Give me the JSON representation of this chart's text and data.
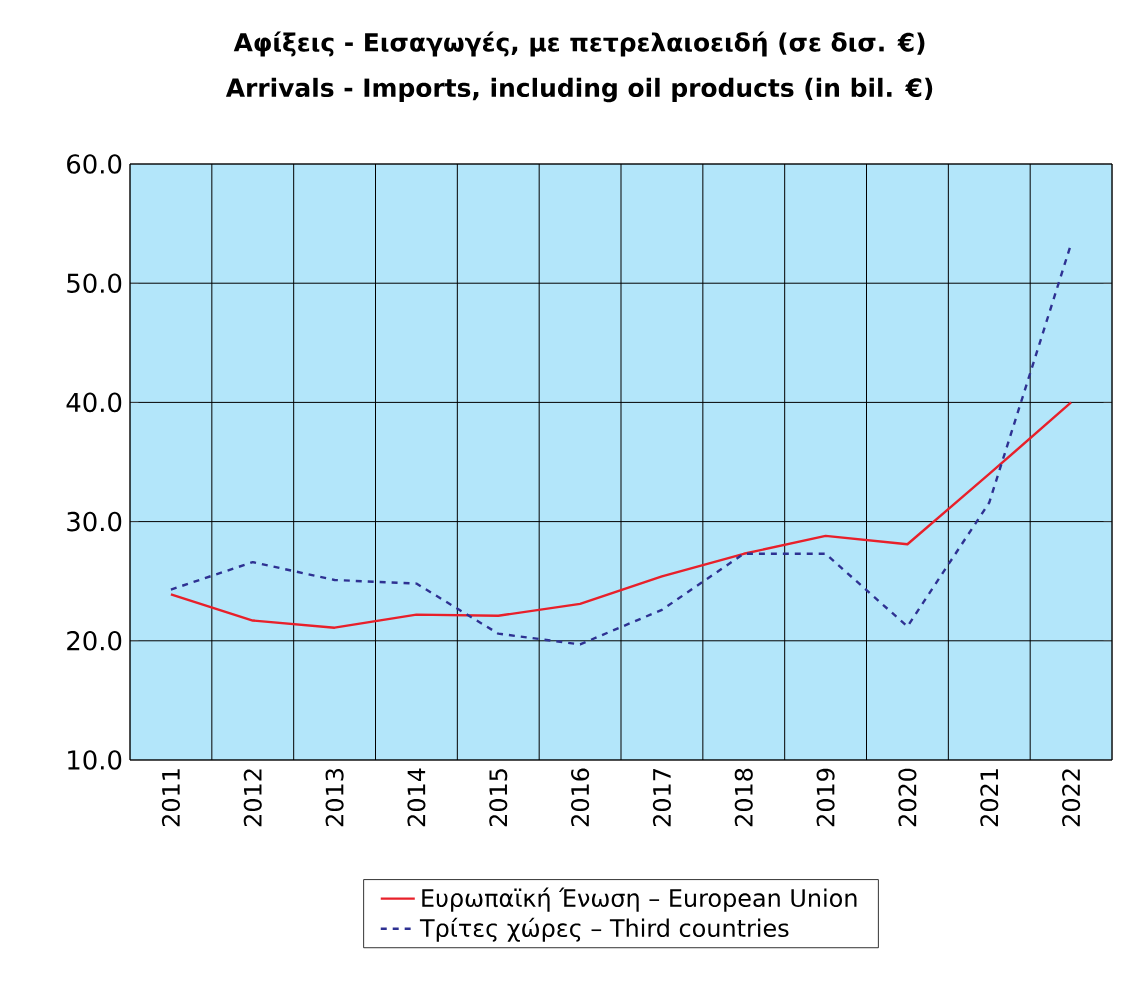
{
  "chart_data": {
    "type": "line",
    "title": "Αφίξεις - Εισαγωγές, με πετρελαιοειδή (σε δισ. €)",
    "subtitle": "Arrivals - Imports, including oil products (in bil. €)",
    "categories": [
      "2011",
      "2012",
      "2013",
      "2014",
      "2015",
      "2016",
      "2017",
      "2018",
      "2019",
      "2020",
      "2021",
      "2022"
    ],
    "series": [
      {
        "name": "Ευρωπαϊκή Ένωση – European Union",
        "color": "#e8202a",
        "line_style": "solid",
        "values": [
          23.9,
          21.7,
          21.1,
          22.2,
          22.1,
          23.1,
          25.4,
          27.3,
          28.8,
          28.1,
          34.0,
          40.0
        ]
      },
      {
        "name": "Τρίτες χώρες – Third countries",
        "color": "#2e3192",
        "line_style": "dashed",
        "values": [
          24.3,
          26.6,
          25.1,
          24.8,
          20.6,
          19.7,
          22.6,
          27.3,
          27.3,
          21.2,
          31.6,
          53.3
        ]
      }
    ],
    "ylim": [
      10,
      60
    ],
    "yticks": [
      {
        "value": 10,
        "label": "10.0"
      },
      {
        "value": 20,
        "label": "20.0"
      },
      {
        "value": 30,
        "label": "30.0"
      },
      {
        "value": 40,
        "label": "40.0"
      },
      {
        "value": 50,
        "label": "50.0"
      },
      {
        "value": 60,
        "label": "60.0"
      }
    ],
    "grid": true,
    "legend": "bottom",
    "marker": "none"
  }
}
